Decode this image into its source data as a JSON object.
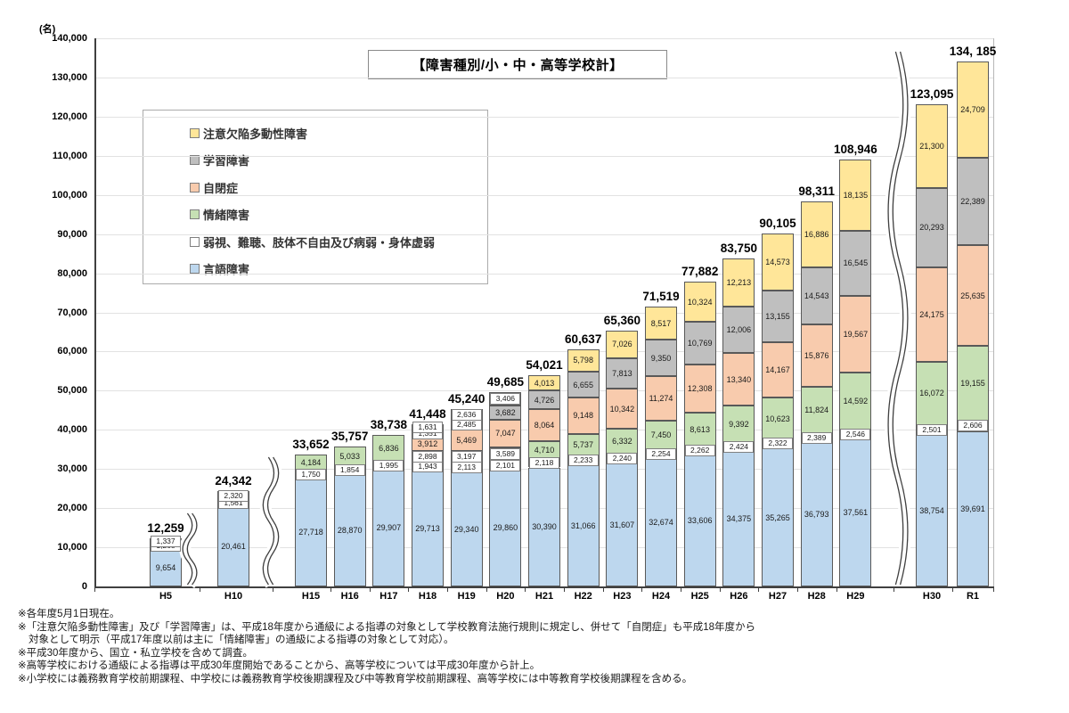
{
  "chart_data": {
    "type": "bar",
    "stacked": true,
    "title": "【障害種別/小・中・高等学校計】",
    "unit": "(名)",
    "grid": true,
    "ylim": [
      0,
      140000
    ],
    "ytick_step": 10000,
    "legend_position": "upper-left-inside",
    "axis_breaks": [
      "H5|H10",
      "H10|H15",
      "H29|H30"
    ],
    "categories": [
      "H5",
      "H10",
      "H15",
      "H16",
      "H17",
      "H18",
      "H19",
      "H20",
      "H21",
      "H22",
      "H23",
      "H24",
      "H25",
      "H26",
      "H27",
      "H28",
      "H29",
      "H30",
      "R1"
    ],
    "series": [
      {
        "name": "言語障害",
        "color": "#BDD7EE",
        "values": [
          9654,
          20461,
          27718,
          28870,
          29907,
          29713,
          29340,
          29860,
          30390,
          31066,
          31607,
          32674,
          33606,
          34375,
          35265,
          36793,
          37561,
          38754,
          39691
        ]
      },
      {
        "name": "弱視、難聴、肢体不自由及び病弱・身体虚弱",
        "color": "#FFFFFF",
        "values": [
          1268,
          1561,
          1750,
          1854,
          1995,
          1943,
          2113,
          2101,
          2118,
          2233,
          2240,
          2254,
          2262,
          2424,
          2322,
          2389,
          2546,
          2501,
          2606
        ]
      },
      {
        "name": "情緒障害",
        "color": "#C6E0B4",
        "values": [
          1337,
          2320,
          4184,
          5033,
          6836,
          2898,
          3197,
          3589,
          4710,
          5737,
          6332,
          7450,
          8613,
          9392,
          10623,
          11824,
          14592,
          16072,
          19155
        ]
      },
      {
        "name": "自閉症",
        "color": "#F8CBAD",
        "values": [
          null,
          null,
          null,
          null,
          null,
          3912,
          5469,
          7047,
          8064,
          9148,
          10342,
          11274,
          12308,
          13340,
          14167,
          15876,
          19567,
          24175,
          25635
        ]
      },
      {
        "name": "学習障害",
        "color": "#BFBFBF",
        "values": [
          null,
          null,
          null,
          null,
          null,
          1351,
          2485,
          3682,
          4726,
          6655,
          7813,
          9350,
          10769,
          12006,
          13155,
          14543,
          16545,
          20293,
          22389
        ]
      },
      {
        "name": "注意欠陥多動性障害",
        "color": "#FFE699",
        "values": [
          null,
          null,
          null,
          null,
          null,
          1631,
          2636,
          3406,
          4013,
          5798,
          7026,
          8517,
          10324,
          12213,
          14573,
          16886,
          18135,
          21300,
          24709
        ]
      }
    ],
    "totals": [
      12259,
      24342,
      33652,
      35757,
      38738,
      41448,
      45240,
      49685,
      54021,
      60637,
      65360,
      71519,
      77882,
      83750,
      90105,
      98311,
      108946,
      123095,
      134185
    ],
    "totals_display": [
      "12,259",
      "24,342",
      "33,652",
      "35,757",
      "38,738",
      "41,448",
      "45,240",
      "49,685",
      "54,021",
      "60,637",
      "65,360",
      "71,519",
      "77,882",
      "83,750",
      "90,105",
      "98,311",
      "108,946",
      "123,095",
      "134, 185"
    ],
    "legend": {
      "items": [
        {
          "label": "注意欠陥多動性障害",
          "color": "#FFE699"
        },
        {
          "label": "学習障害",
          "color": "#BFBFBF"
        },
        {
          "label": "自閉症",
          "color": "#F8CBAD"
        },
        {
          "label": "情緒障害",
          "color": "#C6E0B4"
        },
        {
          "label": "弱視、難聴、肢体不自由及び病弱・身体虚弱",
          "color": "#FFFFFF"
        },
        {
          "label": "言語障害",
          "color": "#BDD7EE"
        }
      ]
    }
  },
  "footnotes": [
    "※各年度5月1日現在。",
    "※「注意欠陥多動性障害」及び「学習障害」は、平成18年度から通級による指導の対象として学校教育法施行規則に規定し、併せて「自閉症」も平成18年度から",
    "対象として明示（平成17年度以前は主に「情緒障害」の通級による指導の対象として対応）。",
    "※平成30年度から、国立・私立学校を含めて調査。",
    "※高等学校における通級による指導は平成30年度開始であることから、高等学校については平成30年度から計上。",
    "※小学校には義務教育学校前期課程、中学校には義務教育学校後期課程及び中等教育学校前期課程、高等学校には中等教育学校後期課程を含める。"
  ]
}
